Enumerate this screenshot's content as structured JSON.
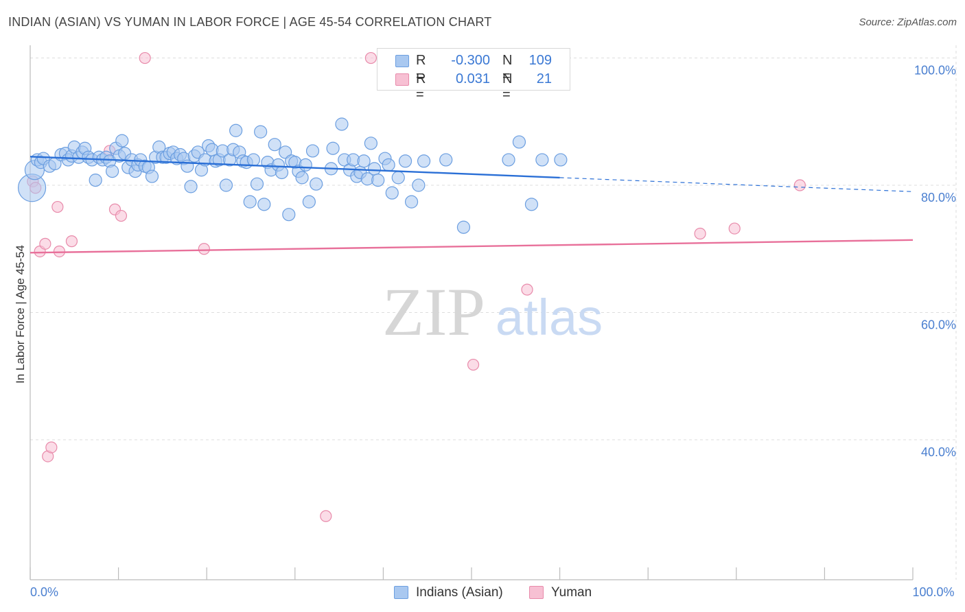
{
  "title": "INDIAN (ASIAN) VS YUMAN IN LABOR FORCE | AGE 45-54 CORRELATION CHART",
  "source": "Source: ZipAtlas.com",
  "watermark": {
    "zip": "ZIP",
    "atlas": "atlas"
  },
  "legend": {
    "r_label": "R =",
    "n_label": "N =",
    "series": [
      {
        "name": "Indians (Asian)",
        "r": "-0.300",
        "n": "109",
        "fill": "#a9c8f0",
        "stroke": "#6b9ee0"
      },
      {
        "name": "Yuman",
        "r": "0.031",
        "n": "21",
        "fill": "#f7c0d3",
        "stroke": "#e88aaa"
      }
    ]
  },
  "colors": {
    "blue_line": "#2a6fd6",
    "pink_line": "#e8709a",
    "axis_text": "#4a7fd0",
    "grid": "#dddddd"
  },
  "chart_data": {
    "type": "scatter",
    "xlabel": "",
    "ylabel": "In Labor Force | Age 45-54",
    "xlim": [
      0,
      100
    ],
    "ylim": [
      18,
      102
    ],
    "x_tick_labels": [
      {
        "v": 0,
        "label": "0.0%"
      },
      {
        "v": 100,
        "label": "100.0%"
      }
    ],
    "y_tick_labels": [
      {
        "v": 40,
        "label": "40.0%"
      },
      {
        "v": 60,
        "label": "60.0%"
      },
      {
        "v": 80,
        "label": "80.0%"
      },
      {
        "v": 100,
        "label": "100.0%"
      }
    ],
    "x_minor_ticks": [
      0,
      10,
      20,
      30,
      40,
      50,
      60,
      70,
      80,
      90,
      100
    ],
    "series": [
      {
        "name": "Indians (Asian)",
        "trend": {
          "x0": 0,
          "y0": 84.5,
          "x1": 60,
          "y1": 81.2,
          "dash_to_x": 100,
          "dash_to_y": 79.0
        },
        "points": [
          [
            0.2,
            79.6,
            20
          ],
          [
            0.5,
            82.4,
            14
          ],
          [
            0.8,
            84.0,
            9
          ],
          [
            1.2,
            83.6,
            9
          ],
          [
            1.5,
            84.2,
            9
          ],
          [
            2.2,
            83.0,
            9
          ],
          [
            2.8,
            83.4,
            9
          ],
          [
            3.5,
            84.8,
            9
          ],
          [
            4.0,
            85.0,
            9
          ],
          [
            4.3,
            84.0,
            9
          ],
          [
            4.7,
            84.6,
            9
          ],
          [
            5.0,
            86.0,
            9
          ],
          [
            5.5,
            84.4,
            9
          ],
          [
            5.9,
            85.2,
            9
          ],
          [
            6.2,
            85.8,
            9
          ],
          [
            6.6,
            84.4,
            9
          ],
          [
            7.0,
            84.0,
            9
          ],
          [
            7.4,
            80.8,
            9
          ],
          [
            7.8,
            84.4,
            9
          ],
          [
            8.2,
            84.0,
            9
          ],
          [
            8.6,
            84.4,
            9
          ],
          [
            9.0,
            83.8,
            9
          ],
          [
            9.3,
            82.2,
            9
          ],
          [
            9.7,
            85.8,
            9
          ],
          [
            10.1,
            84.6,
            9
          ],
          [
            10.4,
            87.0,
            9
          ],
          [
            10.7,
            85.0,
            9
          ],
          [
            11.1,
            82.8,
            9
          ],
          [
            11.5,
            84.0,
            9
          ],
          [
            11.9,
            82.2,
            9
          ],
          [
            12.2,
            83.2,
            9
          ],
          [
            12.5,
            84.0,
            9
          ],
          [
            13.0,
            83.0,
            9
          ],
          [
            13.4,
            82.8,
            9
          ],
          [
            13.8,
            81.4,
            9
          ],
          [
            14.2,
            84.4,
            9
          ],
          [
            14.6,
            86.0,
            9
          ],
          [
            15.0,
            84.4,
            9
          ],
          [
            15.4,
            84.4,
            9
          ],
          [
            15.8,
            85.0,
            9
          ],
          [
            16.2,
            85.2,
            9
          ],
          [
            16.6,
            84.2,
            9
          ],
          [
            17.0,
            84.8,
            9
          ],
          [
            17.4,
            84.2,
            9
          ],
          [
            17.8,
            83.0,
            9
          ],
          [
            18.2,
            79.8,
            9
          ],
          [
            18.6,
            84.6,
            9
          ],
          [
            19.0,
            85.2,
            9
          ],
          [
            19.4,
            82.4,
            9
          ],
          [
            19.8,
            84.0,
            9
          ],
          [
            20.2,
            86.2,
            9
          ],
          [
            20.6,
            85.6,
            9
          ],
          [
            21.0,
            83.8,
            9
          ],
          [
            21.4,
            84.0,
            9
          ],
          [
            21.8,
            85.4,
            9
          ],
          [
            22.2,
            80.0,
            9
          ],
          [
            22.6,
            84.0,
            9
          ],
          [
            23.0,
            85.6,
            9
          ],
          [
            23.3,
            88.6,
            9
          ],
          [
            23.7,
            85.2,
            9
          ],
          [
            24.1,
            83.8,
            9
          ],
          [
            24.5,
            83.6,
            9
          ],
          [
            24.9,
            77.4,
            9
          ],
          [
            25.3,
            84.0,
            9
          ],
          [
            25.7,
            80.2,
            9
          ],
          [
            26.1,
            88.4,
            9
          ],
          [
            26.5,
            77.0,
            9
          ],
          [
            26.9,
            83.6,
            9
          ],
          [
            27.3,
            82.4,
            9
          ],
          [
            27.7,
            86.4,
            9
          ],
          [
            28.1,
            83.2,
            9
          ],
          [
            28.5,
            82.0,
            9
          ],
          [
            28.9,
            85.2,
            9
          ],
          [
            29.3,
            75.4,
            9
          ],
          [
            29.6,
            83.8,
            9
          ],
          [
            30.0,
            83.6,
            9
          ],
          [
            30.4,
            82.2,
            9
          ],
          [
            30.8,
            81.2,
            9
          ],
          [
            31.2,
            83.2,
            9
          ],
          [
            31.6,
            77.4,
            9
          ],
          [
            32.0,
            85.4,
            9
          ],
          [
            32.4,
            80.2,
            9
          ],
          [
            34.1,
            82.6,
            9
          ],
          [
            34.3,
            85.8,
            9
          ],
          [
            35.3,
            89.6,
            9
          ],
          [
            35.6,
            84.0,
            9
          ],
          [
            36.2,
            82.4,
            9
          ],
          [
            36.6,
            84.0,
            9
          ],
          [
            37.0,
            81.4,
            9
          ],
          [
            37.4,
            82.0,
            9
          ],
          [
            37.8,
            83.8,
            9
          ],
          [
            38.2,
            81.0,
            9
          ],
          [
            38.6,
            86.6,
            9
          ],
          [
            39.0,
            82.6,
            9
          ],
          [
            39.4,
            80.8,
            9
          ],
          [
            40.2,
            84.2,
            9
          ],
          [
            40.6,
            83.2,
            9
          ],
          [
            41.0,
            78.8,
            9
          ],
          [
            41.7,
            81.2,
            9
          ],
          [
            42.5,
            83.8,
            9
          ],
          [
            43.2,
            77.4,
            9
          ],
          [
            44.0,
            80.0,
            9
          ],
          [
            44.6,
            83.8,
            9
          ],
          [
            49.1,
            73.4,
            9
          ],
          [
            55.4,
            86.8,
            9
          ],
          [
            56.8,
            77.0,
            9
          ],
          [
            58.0,
            84.0,
            9
          ],
          [
            60.1,
            84.0,
            9
          ],
          [
            54.2,
            84.0,
            9
          ],
          [
            47.1,
            84.0,
            9
          ]
        ]
      },
      {
        "name": "Yuman",
        "trend": {
          "x0": 0,
          "y0": 69.4,
          "x1": 100,
          "y1": 71.4
        },
        "points": [
          [
            0.3,
            80.6,
            8
          ],
          [
            0.6,
            79.6,
            8
          ],
          [
            1.1,
            69.6,
            8
          ],
          [
            1.7,
            70.8,
            8
          ],
          [
            2.0,
            37.4,
            8
          ],
          [
            2.4,
            38.8,
            8
          ],
          [
            3.1,
            76.6,
            8
          ],
          [
            3.3,
            69.6,
            8
          ],
          [
            4.7,
            71.2,
            8
          ],
          [
            9.0,
            85.4,
            8
          ],
          [
            9.6,
            76.2,
            8
          ],
          [
            10.3,
            75.2,
            8
          ],
          [
            13.0,
            100.0,
            8
          ],
          [
            19.7,
            70.0,
            8
          ],
          [
            33.5,
            28.0,
            8
          ],
          [
            38.6,
            100.0,
            8
          ],
          [
            50.2,
            51.8,
            8
          ],
          [
            56.3,
            63.6,
            8
          ],
          [
            75.9,
            72.4,
            8
          ],
          [
            79.8,
            73.2,
            8
          ],
          [
            87.2,
            80.0,
            8
          ]
        ]
      }
    ]
  }
}
